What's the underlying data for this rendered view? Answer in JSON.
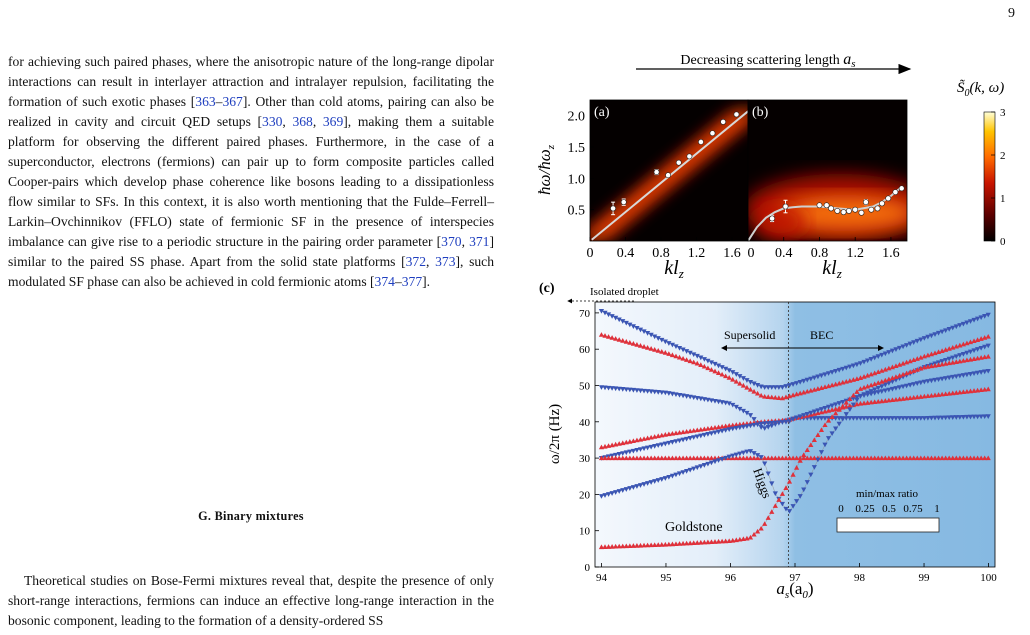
{
  "page": {
    "number": "9"
  },
  "left_column": {
    "para1": [
      {
        "t": "for achieving such paired phases, where the anisotropic nature of the long-range dipolar interactions can result in interlayer attraction and intralayer repulsion, facilitating the formation of such exotic phases ["
      },
      {
        "t": "363",
        "ref": true
      },
      {
        "t": "–"
      },
      {
        "t": "367",
        "ref": true
      },
      {
        "t": "].  Other than cold atoms, pairing can also be realized in cavity and circuit QED setups ["
      },
      {
        "t": "330",
        "ref": true
      },
      {
        "t": ", "
      },
      {
        "t": "368",
        "ref": true
      },
      {
        "t": ", "
      },
      {
        "t": "369",
        "ref": true
      },
      {
        "t": "], making them a suitable platform for observing the different paired phases.  Furthermore, in the case of a superconductor, electrons (fermions) can pair up to form composite particles called Cooper-pairs which develop phase coherence like bosons leading to a dissipationless flow similar to SFs.  In this context, it is also worth mentioning that the Fulde–Ferrell–Larkin–Ovchinnikov (FFLO) state of fermionic SF in the presence of interspecies imbalance can give rise to a periodic structure in the pairing order parameter ["
      },
      {
        "t": "370",
        "ref": true
      },
      {
        "t": ", "
      },
      {
        "t": "371",
        "ref": true
      },
      {
        "t": "] similar to the paired SS phase.  Apart from the solid state platforms ["
      },
      {
        "t": "372",
        "ref": true
      },
      {
        "t": ", "
      },
      {
        "t": "373",
        "ref": true
      },
      {
        "t": "], such modulated SF phase can also be achieved in cold fermionic atoms ["
      },
      {
        "t": "374",
        "ref": true
      },
      {
        "t": "–"
      },
      {
        "t": "377",
        "ref": true
      },
      {
        "t": "]."
      }
    ],
    "heading": "G.   Binary mixtures",
    "para2": "Theoretical studies on Bose-Fermi mixtures reveal that, despite the presence of only short-range interactions, fermions can induce an effective long-range interaction in the bosonic component, leading to the formation of a density-ordered SS"
  },
  "figure": {
    "top_arrow_label": "Decreasing scattering length",
    "top_arrow_symbol": "a",
    "top_arrow_sub": "s",
    "colorbar": {
      "label": "S̃",
      "label_sub": "0",
      "label_args": "(k, ω)",
      "ticks": [
        "3",
        "2",
        "1",
        "0"
      ],
      "colors": [
        "#000000",
        "#5a0000",
        "#c81400",
        "#ff6a00",
        "#ffc400",
        "#ffffd8"
      ]
    },
    "panel_a": {
      "tag": "(a)",
      "ylabel": "ħω/ħω",
      "ylabel_sub": "z",
      "yticks": [
        "2.0",
        "1.5",
        "1.0",
        "0.5"
      ],
      "xticks": [
        "0",
        "0.4",
        "0.8",
        "1.2",
        "1.6"
      ],
      "xlabel": "kl",
      "xlabel_sub": "z",
      "chart_data": {
        "type": "heatmap",
        "xlim": [
          0,
          1.78
        ],
        "ylim": [
          0,
          2.25
        ],
        "line": {
          "x": [
            0.02,
            1.78
          ],
          "y": [
            0.02,
            2.07
          ]
        },
        "points": [
          {
            "x": 0.26,
            "y": 0.52,
            "err": 0.1
          },
          {
            "x": 0.38,
            "y": 0.62,
            "err": 0.05
          },
          {
            "x": 0.75,
            "y": 1.1,
            "err": 0.04
          },
          {
            "x": 0.88,
            "y": 1.05,
            "err": 0.02
          },
          {
            "x": 1.0,
            "y": 1.25,
            "err": 0.0
          },
          {
            "x": 1.12,
            "y": 1.35,
            "err": 0.0
          },
          {
            "x": 1.25,
            "y": 1.58,
            "err": 0.0
          },
          {
            "x": 1.38,
            "y": 1.72,
            "err": 0.0
          },
          {
            "x": 1.5,
            "y": 1.9,
            "err": 0.0
          },
          {
            "x": 1.65,
            "y": 2.02,
            "err": 0.0
          }
        ]
      }
    },
    "panel_b": {
      "tag": "(b)",
      "xticks": [
        "0",
        "0.4",
        "0.8",
        "1.2",
        "1.6"
      ],
      "xlabel": "kl",
      "xlabel_sub": "z",
      "chart_data": {
        "type": "heatmap",
        "xlim": [
          0,
          1.78
        ],
        "ylim": [
          0,
          2.25
        ],
        "curve": {
          "x": [
            0.0,
            0.1,
            0.2,
            0.3,
            0.4,
            0.5,
            0.6,
            0.8,
            1.0,
            1.2,
            1.4,
            1.5,
            1.6,
            1.7
          ],
          "y": [
            0.0,
            0.22,
            0.37,
            0.46,
            0.52,
            0.54,
            0.55,
            0.55,
            0.52,
            0.5,
            0.55,
            0.62,
            0.72,
            0.84
          ]
        },
        "points": [
          {
            "x": 0.27,
            "y": 0.36,
            "err": 0.05
          },
          {
            "x": 0.42,
            "y": 0.55,
            "err": 0.1
          },
          {
            "x": 0.8,
            "y": 0.57,
            "err": 0.0
          },
          {
            "x": 0.88,
            "y": 0.57,
            "err": 0.0
          },
          {
            "x": 0.93,
            "y": 0.52,
            "err": 0.0
          },
          {
            "x": 1.0,
            "y": 0.48,
            "err": 0.0
          },
          {
            "x": 1.07,
            "y": 0.46,
            "err": 0.0
          },
          {
            "x": 1.13,
            "y": 0.48,
            "err": 0.0
          },
          {
            "x": 1.2,
            "y": 0.5,
            "err": 0.0
          },
          {
            "x": 1.27,
            "y": 0.45,
            "err": 0.0
          },
          {
            "x": 1.32,
            "y": 0.62,
            "err": 0.04
          },
          {
            "x": 1.38,
            "y": 0.5,
            "err": 0.0
          },
          {
            "x": 1.45,
            "y": 0.52,
            "err": 0.0
          },
          {
            "x": 1.5,
            "y": 0.6,
            "err": 0.0
          },
          {
            "x": 1.57,
            "y": 0.68,
            "err": 0.0
          },
          {
            "x": 1.65,
            "y": 0.78,
            "err": 0.0
          },
          {
            "x": 1.72,
            "y": 0.84,
            "err": 0.0
          }
        ]
      }
    },
    "panel_c": {
      "tag": "(c)",
      "isolated_droplet": "Isolated droplet",
      "supersolid": "Supersolid",
      "bec": "BEC",
      "higgs": "Higgs",
      "goldstone": "Goldstone",
      "ratio_label": "min/max ratio",
      "ratio_ticks": [
        "0",
        "0.25",
        "0.5",
        "0.75",
        "1"
      ],
      "ylabel": "ω/2π (Hz)",
      "xlabel": "a",
      "xlabel_sub": "s",
      "xlabel_args": "(a",
      "xlabel_sub0": "0",
      "xticks": [
        "94",
        "95",
        "96",
        "97",
        "98",
        "99",
        "100"
      ],
      "yticks": [
        "0",
        "10",
        "20",
        "30",
        "40",
        "50",
        "60",
        "70"
      ],
      "colors": {
        "blue": "#3a55b4",
        "red": "#e0303a",
        "bg_left": "#eef4fb",
        "bg_right": "#8cbde3"
      },
      "chart_data": {
        "type": "scatter",
        "xlim": [
          93.9,
          100.1
        ],
        "ylim": [
          0,
          73
        ],
        "boundary_x": 96.9,
        "series": [
          {
            "color": "blue",
            "x": [
              94,
              95,
              95.5,
              96,
              96.3,
              96.5,
              96.8,
              97,
              98,
              99,
              100
            ],
            "y": [
              70.5,
              62,
              58,
              54,
              51,
              49.5,
              49.5,
              50.5,
              56,
              63,
              69.5
            ]
          },
          {
            "color": "red",
            "x": [
              94,
              95,
              95.5,
              96,
              96.3,
              96.5,
              96.8,
              97,
              98,
              99,
              100
            ],
            "y": [
              64,
              59,
              56,
              52,
              49,
              47,
              46.5,
              47.5,
              52,
              58,
              63.5
            ]
          },
          {
            "color": "blue",
            "x": [
              94,
              95,
              95.5,
              96,
              96.3,
              96.5,
              96.8,
              97,
              98,
              99,
              100
            ],
            "y": [
              49.5,
              48,
              46.5,
              45,
              42,
              38,
              40,
              41,
              41,
              41,
              41.5
            ]
          },
          {
            "color": "red",
            "x": [
              94,
              95,
              96,
              96.5,
              96.9,
              97,
              98,
              99,
              100
            ],
            "y": [
              33,
              36.5,
              39,
              40,
              40.5,
              41,
              45,
              47,
              49
            ]
          },
          {
            "color": "blue",
            "x": [
              94,
              95,
              96,
              96.5,
              96.9,
              97,
              98,
              99,
              100
            ],
            "y": [
              30,
              34,
              38,
              39.5,
              40,
              41,
              47,
              51,
              54
            ]
          },
          {
            "color": "red",
            "x": [
              94,
              95,
              96,
              97,
              98,
              99,
              100
            ],
            "y": [
              30,
              30,
              30,
              30,
              30,
              30,
              30
            ]
          },
          {
            "color": "blue",
            "x": [
              94,
              95,
              95.5,
              96,
              96.3,
              96.5,
              96.7,
              96.9,
              97.1,
              97.5,
              98,
              99,
              100
            ],
            "y": [
              19.5,
              24.5,
              27.5,
              30.5,
              32,
              30,
              20,
              15,
              20,
              35,
              47,
              55,
              61
            ]
          },
          {
            "color": "red",
            "x": [
              94,
              95,
              95.5,
              96,
              96.3,
              96.5,
              96.7,
              96.9,
              97.1,
              97.5,
              98,
              99,
              100
            ],
            "y": [
              5.5,
              6.2,
              6.7,
              7.2,
              8,
              11,
              17,
              23,
              30,
              40,
              49,
              55,
              58
            ]
          }
        ]
      }
    }
  }
}
